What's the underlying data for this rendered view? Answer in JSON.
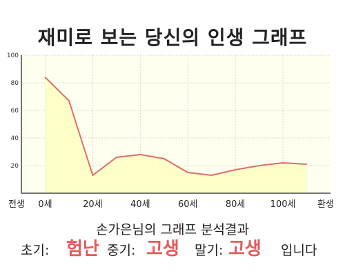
{
  "title": "재미로 보는 당신의 인생 그래프",
  "chart_data": {
    "type": "area",
    "x": [
      0,
      10,
      20,
      30,
      40,
      50,
      60,
      70,
      80,
      90,
      100,
      110
    ],
    "values": [
      84,
      67,
      13,
      26,
      28,
      25,
      15,
      13,
      17,
      20,
      22,
      21
    ],
    "ylim": [
      0,
      100
    ],
    "yticks": [
      20,
      40,
      60,
      80,
      100
    ],
    "xtick_labels": [
      {
        "x": -10,
        "label": "전생"
      },
      {
        "x": 0,
        "label": "0세"
      },
      {
        "x": 20,
        "label": "20세"
      },
      {
        "x": 40,
        "label": "40세"
      },
      {
        "x": 60,
        "label": "60세"
      },
      {
        "x": 80,
        "label": "80세"
      },
      {
        "x": 100,
        "label": "100세"
      },
      {
        "x": 120,
        "label": "환생"
      }
    ],
    "xlim": [
      -10,
      120
    ],
    "grid": true,
    "colors": {
      "line": "#e06b6b",
      "fill": "#ffffc8",
      "plot_bg": "#fffff0",
      "grid": "#d8d8c0"
    }
  },
  "summary": "손가은님의 그래프 분석결과",
  "result": {
    "early_label": "초기:",
    "early_value": "험난",
    "mid_label": "중기:",
    "mid_value": "고생",
    "late_label": "말기:",
    "late_value": "고생",
    "ending": "입니다"
  }
}
